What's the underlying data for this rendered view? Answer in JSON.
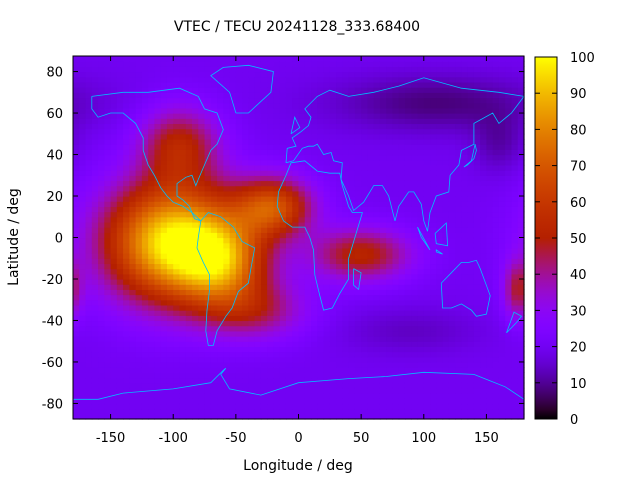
{
  "chart_data": {
    "type": "heatmap",
    "title": "VTEC / TECU 20241128_333.68400",
    "xlabel": "Longitude / deg",
    "ylabel": "Latitude / deg",
    "xlim": [
      -180,
      180
    ],
    "ylim": [
      -87.5,
      87.5
    ],
    "xticks": [
      -150,
      -100,
      -50,
      0,
      50,
      100,
      150
    ],
    "yticks": [
      -80,
      -60,
      -40,
      -20,
      0,
      20,
      40,
      60,
      80
    ],
    "xtick_labels": [
      "-150",
      "-100",
      "-50",
      "0",
      "50",
      "100",
      "150"
    ],
    "ytick_labels": [
      "-80",
      "-60",
      "-40",
      "-20",
      "0",
      "20",
      "40",
      "60",
      "80"
    ],
    "colorbar": {
      "range": [
        0,
        100
      ],
      "ticks": [
        0,
        10,
        20,
        30,
        40,
        50,
        60,
        70,
        80,
        90,
        100
      ],
      "tick_labels": [
        "0",
        "10",
        "20",
        "30",
        "40",
        "50",
        "60",
        "70",
        "80",
        "90",
        "100"
      ]
    },
    "grid_resolution_deg": {
      "lon": 5,
      "lat": 2.5
    },
    "field": {
      "background_tecu": 20,
      "features": [
        {
          "lon": -100,
          "lat": -2,
          "sigma_lon": 38,
          "sigma_lat": 20,
          "amplitude_tecu": 78
        },
        {
          "lon": -60,
          "lat": -12,
          "sigma_lon": 25,
          "sigma_lat": 14,
          "amplitude_tecu": 40
        },
        {
          "lon": -20,
          "lat": 15,
          "sigma_lon": 22,
          "sigma_lat": 10,
          "amplitude_tecu": 45
        },
        {
          "lon": 50,
          "lat": -8,
          "sigma_lon": 28,
          "sigma_lat": 9,
          "amplitude_tecu": 32
        },
        {
          "lon": -95,
          "lat": 45,
          "sigma_lon": 22,
          "sigma_lat": 13,
          "amplitude_tecu": 30
        },
        {
          "lon": -35,
          "lat": -35,
          "sigma_lon": 30,
          "sigma_lat": 10,
          "amplitude_tecu": 22
        },
        {
          "lon": 175,
          "lat": -25,
          "sigma_lon": 8,
          "sigma_lat": 10,
          "amplitude_tecu": 25
        },
        {
          "lon": 110,
          "lat": 65,
          "sigma_lon": 60,
          "sigma_lat": 10,
          "amplitude_tecu": -12
        },
        {
          "lon": 90,
          "lat": -45,
          "sigma_lon": 40,
          "sigma_lat": 8,
          "amplitude_tecu": -6
        },
        {
          "lon": 160,
          "lat": 45,
          "sigma_lon": 15,
          "sigma_lat": 10,
          "amplitude_tecu": -8
        }
      ]
    },
    "colors": {
      "axis": "#000000",
      "coastline": "#00bfff",
      "palette": "gnuplot pm3d default (black-purple-red-yellow)"
    }
  }
}
